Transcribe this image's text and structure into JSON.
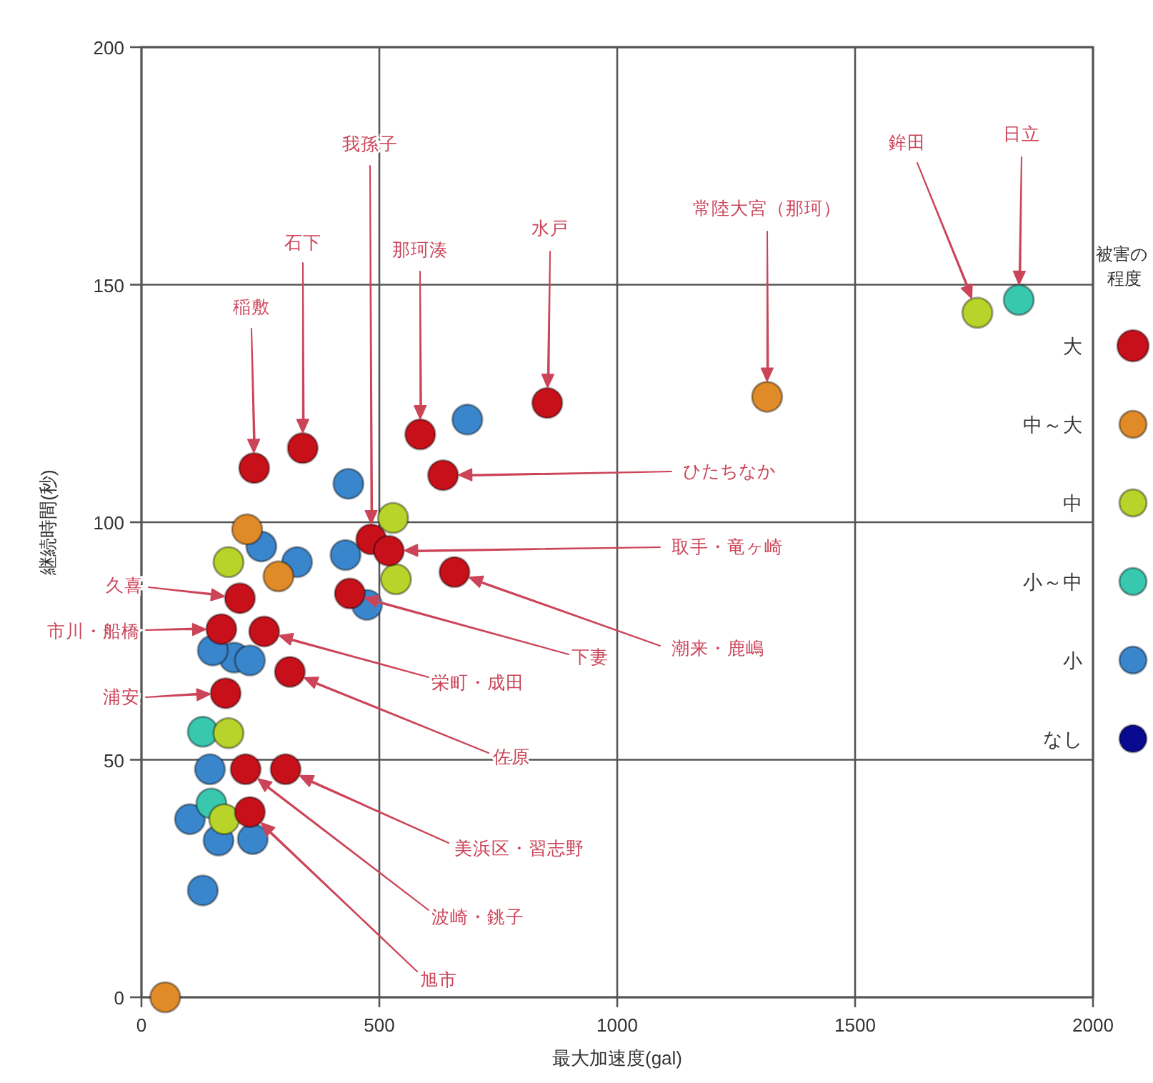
{
  "chart_data": {
    "type": "scatter",
    "xlabel": "最大加速度(gal)",
    "ylabel": "継続時間(秒)",
    "legend_title": "被害の程度",
    "xlim": [
      0,
      2000
    ],
    "xticks": [
      0,
      500,
      1000,
      1500,
      2000
    ],
    "ylim": [
      0,
      200
    ],
    "yticks": [
      0,
      50,
      100,
      150,
      200
    ],
    "grid": true,
    "legend": "right",
    "marker": "circle",
    "series": [
      {
        "name": "大",
        "color": "#c8101a",
        "x": [
          237,
          339,
          586,
          853,
          634,
          483,
          520,
          658,
          438,
          207,
          168,
          258,
          312,
          177,
          219,
          303,
          228
        ],
        "values": [
          111.4,
          115.6,
          118.5,
          125.1,
          109.9,
          96.4,
          94,
          89.5,
          85,
          84,
          77.5,
          77,
          68.5,
          64,
          48,
          48,
          39
        ]
      },
      {
        "name": "中～大",
        "color": "#e08a28",
        "x": [
          1315,
          222,
          288,
          50
        ],
        "values": [
          126.4,
          98.5,
          88.6,
          0
        ]
      },
      {
        "name": "中",
        "color": "#b8d42a",
        "x": [
          1757,
          529,
          535,
          183,
          183,
          174
        ],
        "values": [
          144.1,
          100.9,
          88,
          91.6,
          55.6,
          37.5
        ]
      },
      {
        "name": "小～中",
        "color": "#38c8b0",
        "x": [
          1844,
          129,
          147
        ],
        "values": [
          146.8,
          55.9,
          40.8
        ]
      },
      {
        "name": "小",
        "color": "#3a86cc",
        "x": [
          685,
          435,
          429,
          252,
          327,
          474,
          195,
          228,
          150,
          144,
          102,
          162,
          234,
          129
        ],
        "values": [
          121.6,
          108.1,
          93.1,
          94.9,
          91.6,
          82.6,
          71.5,
          70.9,
          73,
          48,
          37.5,
          33,
          33.3,
          22.5
        ]
      },
      {
        "name": "なし",
        "color": "#0a0a90"
      }
    ],
    "annotations": [
      "稲敷",
      "石下",
      "那珂湊",
      "水戸",
      "常陸大宮（那珂）",
      "鉾田",
      "日立",
      "我孫子",
      "ひたちなか",
      "取手・竜ヶ崎",
      "潮来・鹿嶋",
      "下妻",
      "栄町・成田",
      "佐原",
      "美浜区・習志野",
      "波崎・銚子",
      "旭市",
      "久喜",
      "市川・船橋",
      "浦安"
    ]
  }
}
